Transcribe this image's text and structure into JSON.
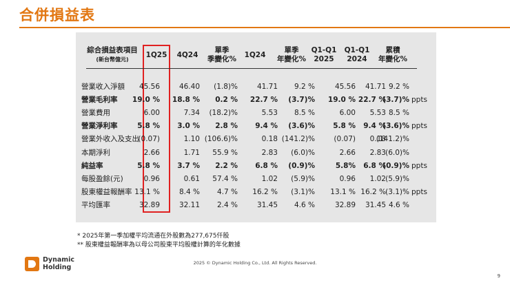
{
  "title": "合併損益表",
  "table": {
    "header_label": "綜合損益表項目",
    "header_sublabel": "(新台幣億元)",
    "columns": [
      {
        "l1": "1Q25",
        "l2": ""
      },
      {
        "l1": "4Q24",
        "l2": ""
      },
      {
        "l1": "單季",
        "l2": "季變化%"
      },
      {
        "l1": "1Q24",
        "l2": ""
      },
      {
        "l1": "單季",
        "l2": "年變化%"
      },
      {
        "l1": "Q1-Q1",
        "l2": "2025"
      },
      {
        "l1": "Q1-Q1",
        "l2": "2024"
      },
      {
        "l1": "累積",
        "l2": "年變化%"
      }
    ],
    "rows": [
      {
        "label": "營業收入淨額",
        "bold": false,
        "values": [
          "45.56",
          "46.40",
          "(1.8)%",
          "41.71",
          "9.2 %",
          "45.56",
          "41.71",
          "9.2 %"
        ],
        "unit": ""
      },
      {
        "label": "營業毛利率",
        "bold": true,
        "values": [
          "19.0 %",
          "18.8 %",
          "0.2 %",
          "22.7 %",
          "(3.7)%",
          "19.0 %",
          "22.7 %",
          "(3.7)%"
        ],
        "unit": "ppts"
      },
      {
        "label": "營業費用",
        "bold": false,
        "values": [
          "6.00",
          "7.34",
          "(18.2)%",
          "5.53",
          "8.5 %",
          "6.00",
          "5.53",
          "8.5 %"
        ],
        "unit": ""
      },
      {
        "label": "營業淨利率",
        "bold": true,
        "values": [
          "5.8 %",
          "3.0 %",
          "2.8 %",
          "9.4 %",
          "(3.6)%",
          "5.8 %",
          "9.4 %",
          "(3.6)%"
        ],
        "unit": "ppts"
      },
      {
        "label": "營業外收入及支出",
        "bold": false,
        "values": [
          "(0.07)",
          "1.10",
          "(106.6)%",
          "0.18",
          "(141.2)%",
          "(0.07)",
          "0.18",
          "(141.2)%"
        ],
        "unit": ""
      },
      {
        "label": "本期淨利",
        "bold": false,
        "values": [
          "2.66",
          "1.71",
          "55.9 %",
          "2.83",
          "(6.0)%",
          "2.66",
          "2.83",
          "(6.0)%"
        ],
        "unit": ""
      },
      {
        "label": "純益率",
        "bold": true,
        "values": [
          "5.8 %",
          "3.7 %",
          "2.2 %",
          "6.8 %",
          "(0.9)%",
          "5.8%",
          "6.8 %",
          "(0.9)%"
        ],
        "unit": "ppts"
      },
      {
        "label": "每股盈餘(元)",
        "bold": false,
        "values": [
          "0.96",
          "0.61",
          "57.4 %",
          "1.02",
          "(5.9)%",
          "0.96",
          "1.02",
          "(5.9)%"
        ],
        "unit": ""
      },
      {
        "label": "股東權益報酬率",
        "bold": false,
        "values": [
          "13.1 %",
          "8.4 %",
          "4.7 %",
          "16.2 %",
          "(3.1)%",
          "13.1 %",
          "16.2 %",
          "(3.1)%"
        ],
        "unit": "ppts"
      },
      {
        "label": "平均匯率",
        "bold": false,
        "values": [
          "32.89",
          "32.11",
          "2.4 %",
          "31.45",
          "4.6 %",
          "32.89",
          "31.45",
          "4.6 %"
        ],
        "unit": ""
      }
    ]
  },
  "notes": [
    "*   2025年第一季加權平均流通在外股數為277,675仟股",
    "** 股東權益報酬率為以母公司股東平均股權計算的年化數據"
  ],
  "logo": {
    "line1": "Dynamic",
    "line2": "Holding"
  },
  "copyright": "2025 © Dynamic Holding Co., Ltd. All Rights Reserved.",
  "page_number": "9",
  "colors": {
    "accent": "#e27712",
    "highlight": "#e02020",
    "panel": "#e6e6e6"
  }
}
